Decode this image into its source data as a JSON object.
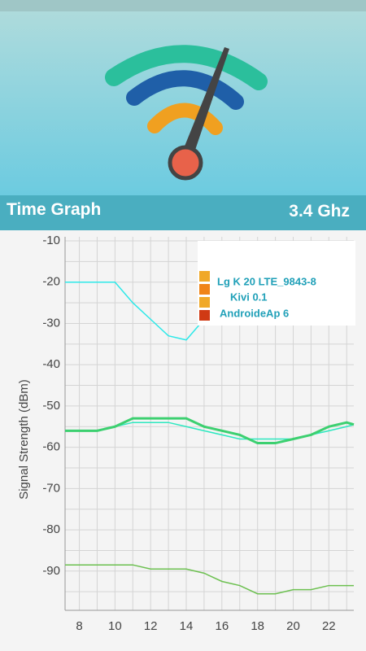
{
  "title": "Time Graph",
  "frequency": "3.4 Ghz",
  "chart_data": {
    "type": "line",
    "y_label": "Signal Strength (dBm)",
    "xlim": [
      7.2,
      23.4
    ],
    "xticks": [
      8,
      10,
      12,
      14,
      16,
      18,
      20,
      22
    ],
    "xminor": [
      9,
      11,
      13,
      15,
      17,
      19,
      21,
      23
    ],
    "ylim": [
      -99.5,
      -10
    ],
    "yticks": [
      -10,
      -20,
      -30,
      -40,
      -50,
      -60,
      -70,
      -80,
      -90
    ],
    "yminor": [
      -15,
      -25,
      -35,
      -45,
      -55,
      -65,
      -75,
      -85,
      -95
    ],
    "grid": true,
    "series": [
      {
        "name": "Lg K 20 LTE_9843-8",
        "color": "#2de8e8",
        "legend_color": "#f0a828",
        "width": 1.5,
        "x": [
          7.2,
          10,
          11,
          12,
          13,
          14,
          15
        ],
        "values": [
          -20,
          -20,
          -25,
          -29,
          -33,
          -34,
          -29
        ]
      },
      {
        "name": "Kivi 0.1",
        "color": "#2de8c0",
        "legend_color": "#f08418",
        "width": 1.5,
        "x": [
          7.2,
          9,
          10,
          11,
          12,
          13,
          14,
          15,
          16,
          17,
          18,
          19,
          20,
          21,
          22,
          23,
          23.4
        ],
        "values": [
          -56,
          -56,
          -55,
          -54,
          -54,
          -54,
          -55,
          -56,
          -57,
          -58,
          -58,
          -58,
          -58,
          -57,
          -56,
          -55,
          -54.5
        ]
      },
      {
        "name": "AndroideAp 6",
        "color": "#3cd070",
        "legend_color": "#f0a828",
        "width": 3,
        "x": [
          7.2,
          9,
          10,
          11,
          12,
          13,
          14,
          15,
          16,
          17,
          18,
          19,
          20,
          21,
          22,
          23,
          23.4
        ],
        "values": [
          -56,
          -56,
          -55,
          -53,
          -53,
          -53,
          -53,
          -55,
          -56,
          -57,
          -59,
          -59,
          -58,
          -57,
          -55,
          -54,
          -54.5
        ]
      },
      {
        "name": null,
        "color": "#6cc050",
        "legend_color": "#d03a14",
        "width": 1.5,
        "x": [
          7.2,
          11,
          12,
          14,
          15,
          16,
          17,
          18,
          19,
          20,
          21,
          22,
          23.4
        ],
        "values": [
          -88.5,
          -88.5,
          -89.5,
          -89.5,
          -90.5,
          -92.5,
          -93.5,
          -95.5,
          -95.5,
          -94.5,
          -94.5,
          -93.5,
          -93.5
        ]
      }
    ]
  }
}
